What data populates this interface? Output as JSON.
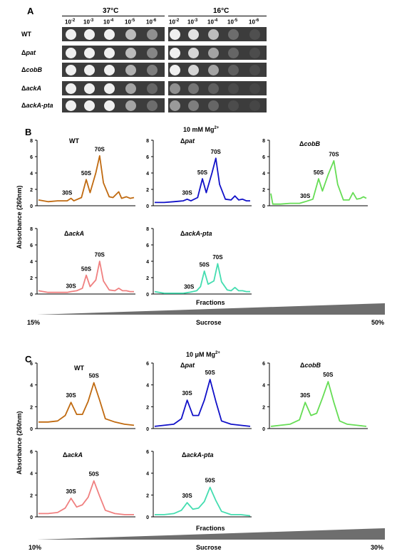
{
  "panel_A": {
    "letter": "A",
    "temp_37": "37°C",
    "temp_16": "16°C",
    "dilutions_37": [
      {
        "base": "10",
        "exp": "-2"
      },
      {
        "base": "10",
        "exp": "-3"
      },
      {
        "base": "10",
        "exp": "-4"
      },
      {
        "base": "10",
        "exp": "-5"
      },
      {
        "base": "10",
        "exp": "-6"
      }
    ],
    "dilutions_16": [
      {
        "base": "10",
        "exp": "-2"
      },
      {
        "base": "10",
        "exp": "-3"
      },
      {
        "base": "10",
        "exp": "-4"
      },
      {
        "base": "10",
        "exp": "-5"
      },
      {
        "base": "10",
        "exp": "-6"
      }
    ],
    "strains": [
      {
        "prefix": "",
        "name": "WT"
      },
      {
        "prefix": "Δ",
        "name": "pat"
      },
      {
        "prefix": "Δ",
        "name": "cobB"
      },
      {
        "prefix": "Δ",
        "name": "ackA"
      },
      {
        "prefix": "Δ",
        "name": "ackA-pta"
      }
    ],
    "growth_37": [
      [
        1,
        1,
        1,
        0.8,
        0.6
      ],
      [
        1,
        1,
        1,
        0.8,
        0.55
      ],
      [
        1,
        1,
        1,
        0.75,
        0.5
      ],
      [
        1,
        1,
        1,
        0.7,
        0.35
      ],
      [
        1,
        1,
        1,
        0.7,
        0.4
      ]
    ],
    "growth_16": [
      [
        1,
        0.95,
        0.8,
        0.4,
        0.15
      ],
      [
        1,
        0.9,
        0.7,
        0.35,
        0.12
      ],
      [
        1,
        0.9,
        0.7,
        0.3,
        0.1
      ],
      [
        0.6,
        0.45,
        0.3,
        0.1,
        0.05
      ],
      [
        0.65,
        0.5,
        0.35,
        0.12,
        0.05
      ]
    ]
  },
  "panel_B": {
    "letter": "B",
    "condition_text": "10 mM Mg",
    "condition_sup": "2+",
    "ylabel": "Absorbance (260nm)",
    "xlabel": "Fractions",
    "gradient_label": "Sucrose",
    "gradient_min": "15%",
    "gradient_max": "50%",
    "yticks": [
      "0",
      "2",
      "4",
      "6",
      "8"
    ],
    "peak_labels": [
      "30S",
      "50S",
      "70S"
    ],
    "profiles": [
      {
        "prefix": "",
        "name": "WT",
        "color": "#c06a10",
        "trace": [
          [
            0,
            0.7
          ],
          [
            0.1,
            0.5
          ],
          [
            0.2,
            0.6
          ],
          [
            0.3,
            0.6
          ],
          [
            0.34,
            0.9
          ],
          [
            0.37,
            0.6
          ],
          [
            0.45,
            1.0
          ],
          [
            0.5,
            3.2
          ],
          [
            0.54,
            1.6
          ],
          [
            0.6,
            4.0
          ],
          [
            0.64,
            6.1
          ],
          [
            0.68,
            2.8
          ],
          [
            0.74,
            1.1
          ],
          [
            0.78,
            1.0
          ],
          [
            0.84,
            1.7
          ],
          [
            0.87,
            0.9
          ],
          [
            0.92,
            1.1
          ],
          [
            0.96,
            0.9
          ],
          [
            1,
            1.0
          ]
        ],
        "peaks": [
          {
            "x": 0.3,
            "y": 1.0
          },
          {
            "x": 0.5,
            "y": 3.4
          },
          {
            "x": 0.64,
            "y": 6.3
          }
        ]
      },
      {
        "prefix": "Δ",
        "name": "pat",
        "color": "#1010c8",
        "trace": [
          [
            0,
            0.4
          ],
          [
            0.1,
            0.4
          ],
          [
            0.2,
            0.5
          ],
          [
            0.3,
            0.6
          ],
          [
            0.34,
            0.8
          ],
          [
            0.38,
            0.6
          ],
          [
            0.45,
            1.0
          ],
          [
            0.5,
            3.3
          ],
          [
            0.54,
            1.6
          ],
          [
            0.6,
            4.0
          ],
          [
            0.64,
            5.8
          ],
          [
            0.68,
            2.6
          ],
          [
            0.74,
            0.8
          ],
          [
            0.8,
            0.7
          ],
          [
            0.84,
            1.2
          ],
          [
            0.88,
            0.7
          ],
          [
            0.92,
            0.8
          ],
          [
            0.96,
            0.6
          ],
          [
            1,
            0.6
          ]
        ],
        "peaks": [
          {
            "x": 0.34,
            "y": 1.0
          },
          {
            "x": 0.5,
            "y": 3.5
          },
          {
            "x": 0.64,
            "y": 6.0
          }
        ]
      },
      {
        "prefix": "Δ",
        "name": "cobB",
        "color": "#66dd55",
        "trace": [
          [
            0,
            1.5
          ],
          [
            0.02,
            0.2
          ],
          [
            0.1,
            0.2
          ],
          [
            0.2,
            0.3
          ],
          [
            0.3,
            0.3
          ],
          [
            0.36,
            0.5
          ],
          [
            0.44,
            0.8
          ],
          [
            0.5,
            3.3
          ],
          [
            0.54,
            1.8
          ],
          [
            0.6,
            3.8
          ],
          [
            0.66,
            5.5
          ],
          [
            0.7,
            2.6
          ],
          [
            0.76,
            0.7
          ],
          [
            0.82,
            0.7
          ],
          [
            0.86,
            1.6
          ],
          [
            0.9,
            0.8
          ],
          [
            0.94,
            0.9
          ],
          [
            0.97,
            1.1
          ],
          [
            1,
            0.9
          ]
        ],
        "peaks": [
          {
            "x": 0.36,
            "y": 0.6
          },
          {
            "x": 0.5,
            "y": 3.5
          },
          {
            "x": 0.66,
            "y": 5.7
          }
        ]
      },
      {
        "prefix": "Δ",
        "name": "ackA",
        "color": "#f08080",
        "trace": [
          [
            0,
            0.4
          ],
          [
            0.1,
            0.2
          ],
          [
            0.2,
            0.2
          ],
          [
            0.3,
            0.2
          ],
          [
            0.34,
            0.3
          ],
          [
            0.4,
            0.4
          ],
          [
            0.46,
            0.7
          ],
          [
            0.5,
            2.3
          ],
          [
            0.54,
            0.9
          ],
          [
            0.6,
            1.7
          ],
          [
            0.64,
            4.0
          ],
          [
            0.68,
            1.6
          ],
          [
            0.74,
            0.5
          ],
          [
            0.8,
            0.4
          ],
          [
            0.84,
            0.7
          ],
          [
            0.88,
            0.4
          ],
          [
            0.92,
            0.4
          ],
          [
            0.96,
            0.3
          ],
          [
            1,
            0.3
          ]
        ],
        "peaks": [
          {
            "x": 0.34,
            "y": 0.4
          },
          {
            "x": 0.5,
            "y": 2.5
          },
          {
            "x": 0.64,
            "y": 4.2
          }
        ]
      },
      {
        "prefix": "Δ",
        "name": "ackA-pta",
        "color": "#44ddb0",
        "trace": [
          [
            0,
            0.3
          ],
          [
            0.1,
            0.1
          ],
          [
            0.2,
            0.1
          ],
          [
            0.3,
            0.1
          ],
          [
            0.36,
            0.2
          ],
          [
            0.44,
            0.4
          ],
          [
            0.48,
            0.9
          ],
          [
            0.52,
            2.8
          ],
          [
            0.56,
            1.2
          ],
          [
            0.62,
            1.6
          ],
          [
            0.66,
            3.7
          ],
          [
            0.7,
            1.5
          ],
          [
            0.76,
            0.5
          ],
          [
            0.8,
            0.4
          ],
          [
            0.84,
            0.8
          ],
          [
            0.88,
            0.4
          ],
          [
            0.92,
            0.4
          ],
          [
            0.96,
            0.3
          ],
          [
            1,
            0.3
          ]
        ],
        "peaks": [
          {
            "x": 0.36,
            "y": 0.3
          },
          {
            "x": 0.52,
            "y": 3.0
          },
          {
            "x": 0.66,
            "y": 3.9
          }
        ]
      }
    ]
  },
  "panel_C": {
    "letter": "C",
    "condition_text": "10 μM Mg",
    "condition_sup": "2+",
    "ylabel": "Absorbance (260nm)",
    "xlabel": "Fractions",
    "gradient_label": "Sucrose",
    "gradient_min": "10%",
    "gradient_max": "30%",
    "yticks": [
      "0",
      "2",
      "4",
      "6"
    ],
    "peak_labels": [
      "30S",
      "50S"
    ],
    "profiles": [
      {
        "prefix": "",
        "name": "WT",
        "color": "#c06a10",
        "trace": [
          [
            0,
            0.6
          ],
          [
            0.1,
            0.6
          ],
          [
            0.2,
            0.7
          ],
          [
            0.28,
            1.2
          ],
          [
            0.34,
            2.4
          ],
          [
            0.4,
            1.3
          ],
          [
            0.46,
            1.3
          ],
          [
            0.52,
            2.5
          ],
          [
            0.58,
            4.2
          ],
          [
            0.64,
            2.6
          ],
          [
            0.7,
            0.9
          ],
          [
            0.8,
            0.6
          ],
          [
            0.9,
            0.4
          ],
          [
            1,
            0.3
          ]
        ],
        "peaks": [
          {
            "x": 0.34,
            "y": 2.6
          },
          {
            "x": 0.58,
            "y": 4.4
          }
        ]
      },
      {
        "prefix": "Δ",
        "name": "pat",
        "color": "#1010c8",
        "trace": [
          [
            0,
            0.2
          ],
          [
            0.1,
            0.3
          ],
          [
            0.2,
            0.4
          ],
          [
            0.28,
            0.9
          ],
          [
            0.34,
            2.6
          ],
          [
            0.4,
            1.2
          ],
          [
            0.46,
            1.2
          ],
          [
            0.52,
            2.6
          ],
          [
            0.58,
            4.5
          ],
          [
            0.64,
            2.5
          ],
          [
            0.7,
            0.7
          ],
          [
            0.8,
            0.4
          ],
          [
            0.9,
            0.3
          ],
          [
            1,
            0.2
          ]
        ],
        "peaks": [
          {
            "x": 0.34,
            "y": 2.8
          },
          {
            "x": 0.58,
            "y": 4.7
          }
        ]
      },
      {
        "prefix": "Δ",
        "name": "cobB",
        "color": "#66dd55",
        "trace": [
          [
            0,
            0.2
          ],
          [
            0.1,
            0.3
          ],
          [
            0.2,
            0.4
          ],
          [
            0.3,
            0.8
          ],
          [
            0.36,
            2.4
          ],
          [
            0.42,
            1.2
          ],
          [
            0.48,
            1.4
          ],
          [
            0.54,
            2.8
          ],
          [
            0.6,
            4.3
          ],
          [
            0.66,
            2.4
          ],
          [
            0.72,
            0.7
          ],
          [
            0.8,
            0.4
          ],
          [
            0.9,
            0.3
          ],
          [
            1,
            0.2
          ]
        ],
        "peaks": [
          {
            "x": 0.36,
            "y": 2.6
          },
          {
            "x": 0.6,
            "y": 4.5
          }
        ]
      },
      {
        "prefix": "Δ",
        "name": "ackA",
        "color": "#f08080",
        "trace": [
          [
            0,
            0.3
          ],
          [
            0.1,
            0.3
          ],
          [
            0.2,
            0.4
          ],
          [
            0.28,
            0.8
          ],
          [
            0.34,
            1.7
          ],
          [
            0.4,
            0.9
          ],
          [
            0.46,
            1.1
          ],
          [
            0.52,
            1.8
          ],
          [
            0.58,
            3.3
          ],
          [
            0.64,
            1.9
          ],
          [
            0.7,
            0.6
          ],
          [
            0.8,
            0.3
          ],
          [
            0.9,
            0.2
          ],
          [
            1,
            0.2
          ]
        ],
        "peaks": [
          {
            "x": 0.34,
            "y": 1.9
          },
          {
            "x": 0.58,
            "y": 3.5
          }
        ]
      },
      {
        "prefix": "Δ",
        "name": "ackA-pta",
        "color": "#44ddb0",
        "trace": [
          [
            0,
            0.2
          ],
          [
            0.1,
            0.2
          ],
          [
            0.2,
            0.3
          ],
          [
            0.28,
            0.6
          ],
          [
            0.34,
            1.3
          ],
          [
            0.4,
            0.7
          ],
          [
            0.46,
            0.8
          ],
          [
            0.52,
            1.4
          ],
          [
            0.58,
            2.7
          ],
          [
            0.64,
            1.5
          ],
          [
            0.7,
            0.5
          ],
          [
            0.8,
            0.2
          ],
          [
            0.9,
            0.2
          ],
          [
            1,
            0.1
          ]
        ],
        "peaks": [
          {
            "x": 0.34,
            "y": 1.5
          },
          {
            "x": 0.58,
            "y": 2.9
          }
        ]
      }
    ]
  }
}
